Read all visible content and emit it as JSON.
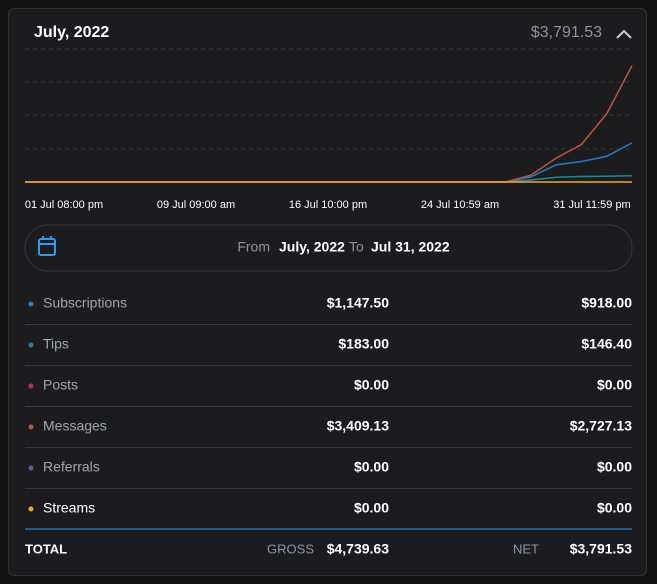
{
  "header": {
    "title": "July, 2022",
    "amount": "$3,791.53"
  },
  "chart_data": {
    "type": "line",
    "categories": [
      "01 Jul 08:00 pm",
      null,
      null,
      null,
      null,
      null,
      "09 Jul 09:00 am",
      null,
      null,
      null,
      null,
      null,
      "16 Jul 10:00 pm",
      null,
      null,
      null,
      null,
      null,
      "24 Jul 10:59 am",
      null,
      null,
      null,
      null,
      null,
      "31 Jul 11:59 pm"
    ],
    "series": [
      {
        "color": "#1f7fc4",
        "values": [
          0,
          0,
          0,
          0,
          0,
          0,
          0,
          0,
          0,
          0,
          0,
          0,
          0,
          0,
          0,
          0,
          0,
          0,
          0,
          0,
          150,
          500,
          600,
          750,
          1147.5
        ]
      },
      {
        "color": "#1d8a9a",
        "values": [
          0,
          0,
          0,
          0,
          0,
          0,
          0,
          0,
          0,
          0,
          0,
          0,
          0,
          0,
          0,
          0,
          0,
          0,
          0,
          0,
          60,
          140,
          160,
          170,
          183
        ]
      },
      {
        "color": "#c0553a",
        "values": [
          0,
          0,
          0,
          0,
          0,
          0,
          0,
          0,
          0,
          0,
          0,
          0,
          0,
          0,
          0,
          0,
          0,
          0,
          0,
          0,
          200,
          700,
          1100,
          2000,
          3409.13
        ]
      },
      {
        "color": "#f5a623",
        "values": [
          0,
          0,
          0,
          0,
          0,
          0,
          0,
          0,
          0,
          0,
          0,
          0,
          0,
          0,
          0,
          0,
          0,
          0,
          0,
          0,
          0,
          0,
          0,
          0,
          0
        ]
      }
    ],
    "ylim": [
      0,
      3900
    ]
  },
  "date_range": {
    "from_label": "From",
    "from": "July, 2022",
    "to_label": "To",
    "to": "Jul 31, 2022"
  },
  "table": {
    "rows": [
      {
        "name": "Subscriptions",
        "color": "#1f7fc4",
        "gross": "$1,147.50",
        "net": "$918.00"
      },
      {
        "name": "Tips",
        "color": "#1d8a9a",
        "gross": "$183.00",
        "net": "$146.40"
      },
      {
        "name": "Posts",
        "color": "#b0325a",
        "gross": "$0.00",
        "net": "$0.00"
      },
      {
        "name": "Messages",
        "color": "#c0553a",
        "gross": "$3,409.13",
        "net": "$2,727.13"
      },
      {
        "name": "Referrals",
        "color": "#5a5ea0",
        "gross": "$0.00",
        "net": "$0.00"
      },
      {
        "name": "Streams",
        "color": "#f5a623",
        "gross": "$0.00",
        "net": "$0.00"
      }
    ],
    "total": {
      "label": "TOTAL",
      "gross_label": "GROSS",
      "gross": "$4,739.63",
      "net_label": "NET",
      "net": "$3,791.53"
    }
  }
}
